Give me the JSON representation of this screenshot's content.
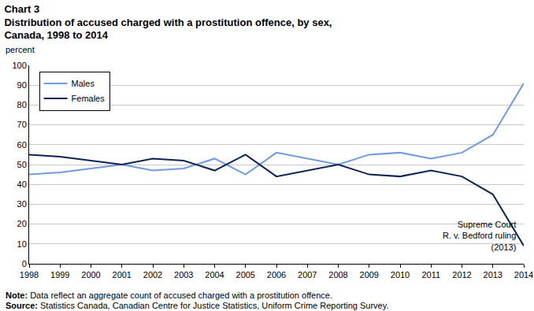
{
  "chart_data": {
    "type": "line",
    "title": [
      "Chart 3",
      "Distribution of accused charged with a prostitution offence, by sex,",
      "Canada, 1998 to 2014"
    ],
    "y_label": "percent",
    "categories": [
      "1998",
      "1999",
      "2000",
      "2001",
      "2002",
      "2003",
      "2004",
      "2005",
      "2006",
      "2007",
      "2008",
      "2009",
      "2010",
      "2011",
      "2012",
      "2013",
      "2014"
    ],
    "series": [
      {
        "name": "Males",
        "color": "#6f9be3",
        "values": [
          45,
          46,
          48,
          50,
          47,
          48,
          53,
          45,
          56,
          53,
          50,
          55,
          56,
          53,
          56,
          65,
          91
        ]
      },
      {
        "name": "Females",
        "color": "#0b2456",
        "values": [
          55,
          54,
          52,
          50,
          53,
          52,
          47,
          55,
          44,
          47,
          50,
          45,
          44,
          47,
          44,
          35,
          9
        ]
      }
    ],
    "ylim": [
      0,
      100
    ],
    "yticks": [
      0,
      10,
      20,
      30,
      40,
      50,
      60,
      70,
      80,
      90,
      100
    ],
    "grid": true,
    "legend": "upper left",
    "annotation": {
      "lines": [
        "Supreme Court",
        "R. v. Bedford ruling",
        "(2013)"
      ]
    },
    "note": {
      "label": "Note:",
      "text": "Data reflect an aggregate count of accused charged with a prostitution offence."
    },
    "source": {
      "label": "Source:",
      "text": "Statistics Canada, Canadian Centre for Justice Statistics, Uniform Crime Reporting Survey."
    }
  }
}
